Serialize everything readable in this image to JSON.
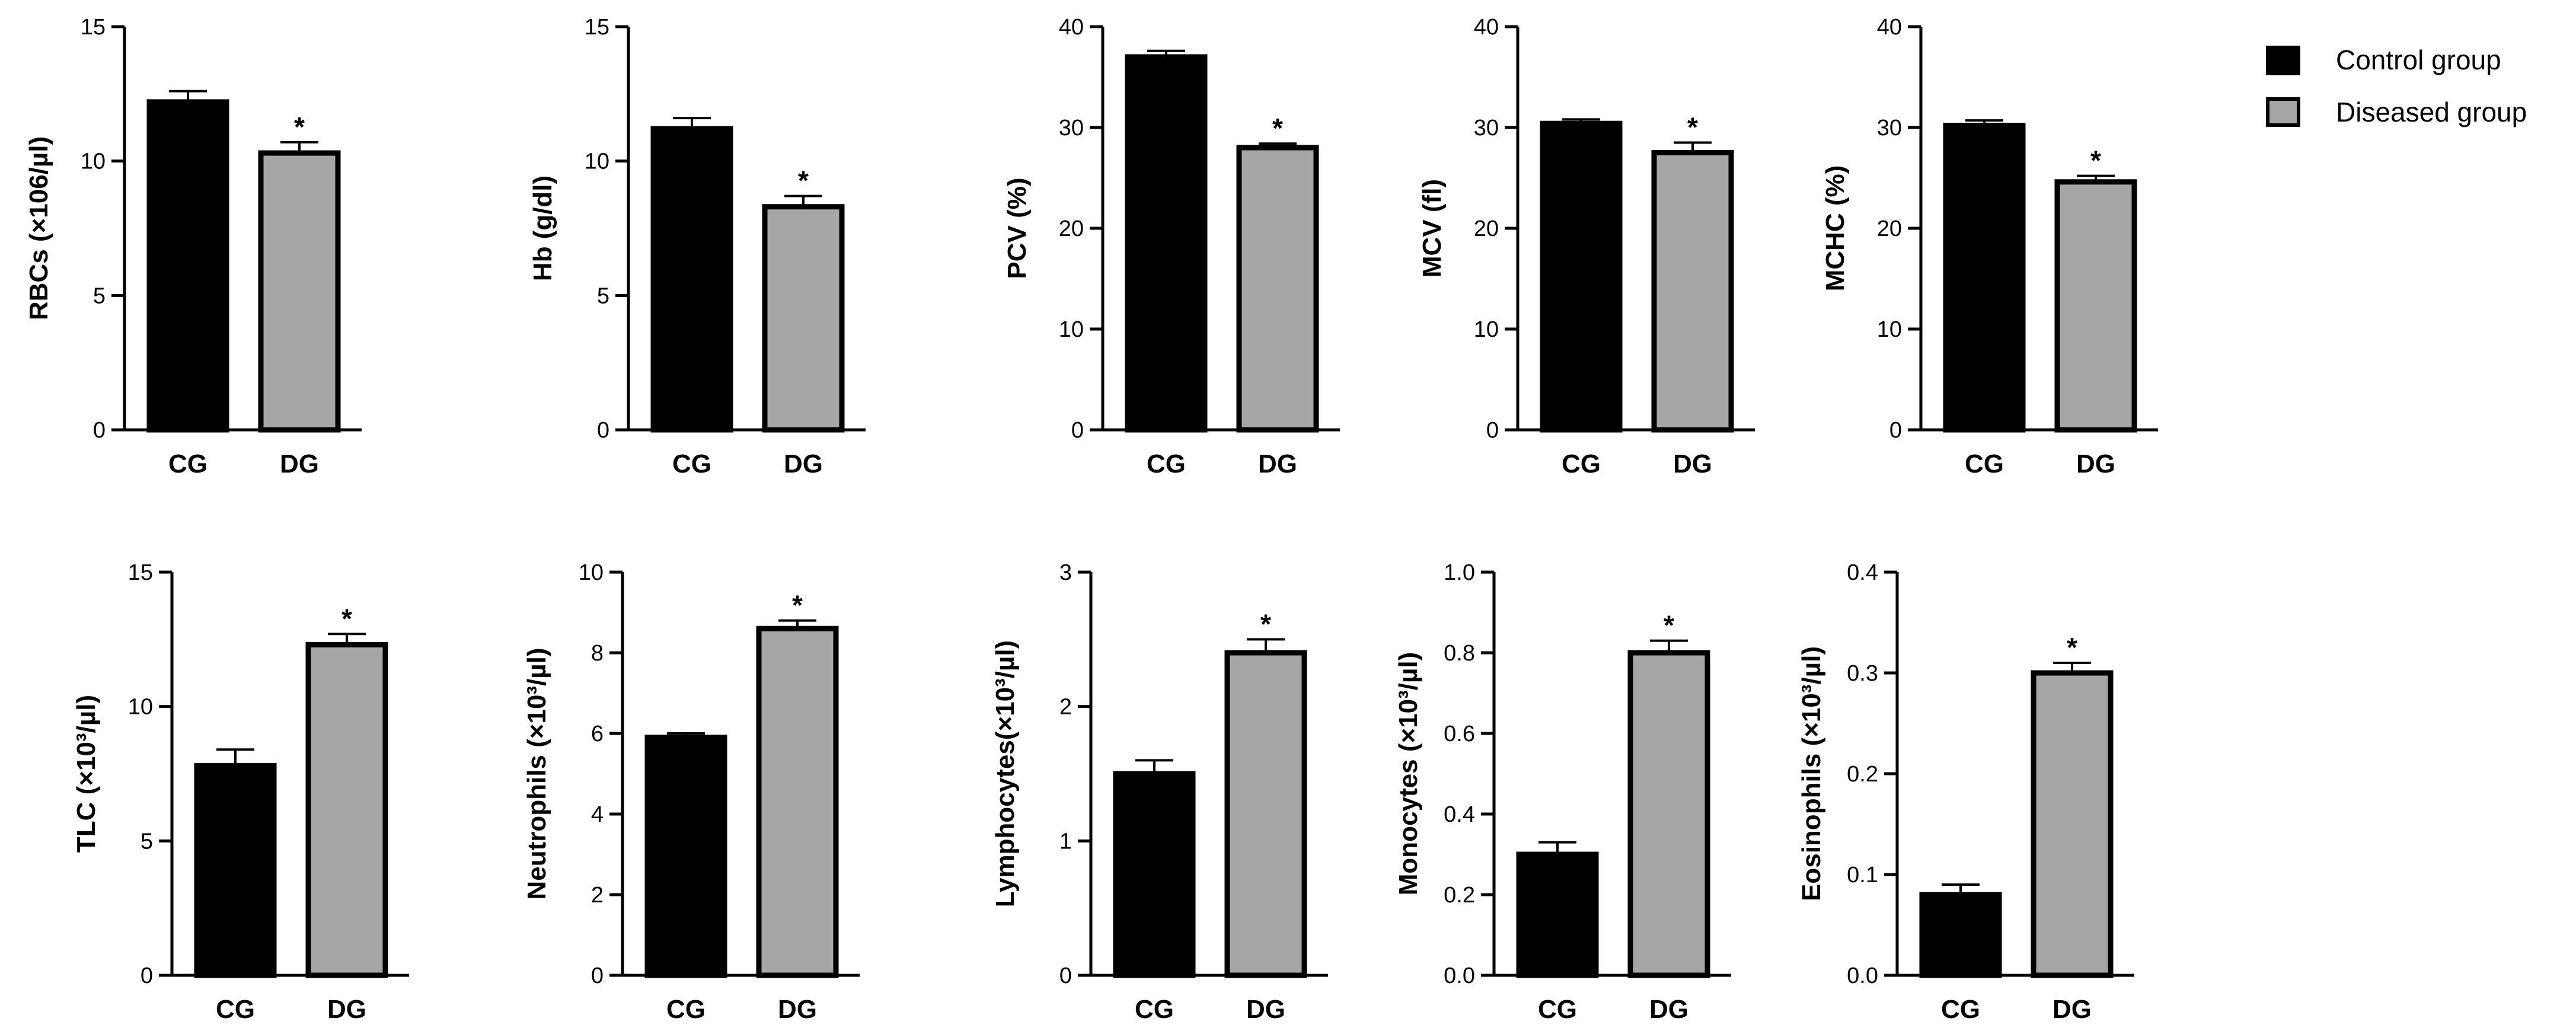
{
  "legend": [
    {
      "label": "Control group",
      "color": "#000000"
    },
    {
      "label": "Diseased group",
      "color": "#a6a6a8"
    }
  ],
  "chart_data": [
    {
      "type": "bar",
      "ylabel": "RBCs (×106/µl)",
      "categories": [
        "CG",
        "DG"
      ],
      "values": [
        12.2,
        10.3
      ],
      "errors": [
        0.4,
        0.4
      ],
      "sig": [
        "",
        "*"
      ],
      "ylim": [
        0,
        15
      ],
      "ticks": [
        0,
        5,
        10,
        15
      ],
      "tick_labels": [
        "0",
        "5",
        "10",
        "15"
      ]
    },
    {
      "type": "bar",
      "ylabel": "Hb (g/dl)",
      "categories": [
        "CG",
        "DG"
      ],
      "values": [
        11.2,
        8.3
      ],
      "errors": [
        0.4,
        0.4
      ],
      "sig": [
        "",
        "*"
      ],
      "ylim": [
        0,
        15
      ],
      "ticks": [
        0,
        5,
        10,
        15
      ],
      "tick_labels": [
        "0",
        "5",
        "10",
        "15"
      ]
    },
    {
      "type": "bar",
      "ylabel": "PCV (%)",
      "categories": [
        "CG",
        "DG"
      ],
      "values": [
        37,
        28
      ],
      "errors": [
        0.6,
        0.4
      ],
      "sig": [
        "",
        "*"
      ],
      "ylim": [
        0,
        40
      ],
      "ticks": [
        0,
        10,
        20,
        30,
        40
      ],
      "tick_labels": [
        "0",
        "10",
        "20",
        "30",
        "40"
      ]
    },
    {
      "type": "bar",
      "ylabel": "MCV (fl)",
      "categories": [
        "CG",
        "DG"
      ],
      "values": [
        30.4,
        27.5
      ],
      "errors": [
        0.4,
        1.0
      ],
      "sig": [
        "",
        "*"
      ],
      "ylim": [
        0,
        40
      ],
      "ticks": [
        0,
        10,
        20,
        30,
        40
      ],
      "tick_labels": [
        "0",
        "10",
        "20",
        "30",
        "40"
      ]
    },
    {
      "type": "bar",
      "ylabel": "MCHC (%)",
      "categories": [
        "CG",
        "DG"
      ],
      "values": [
        30.2,
        24.6
      ],
      "errors": [
        0.5,
        0.6
      ],
      "sig": [
        "",
        "*"
      ],
      "ylim": [
        0,
        40
      ],
      "ticks": [
        0,
        10,
        20,
        30,
        40
      ],
      "tick_labels": [
        "0",
        "10",
        "20",
        "30",
        "40"
      ]
    },
    {
      "type": "bar",
      "ylabel": "TLC (×10³/µl)",
      "categories": [
        "CG",
        "DG"
      ],
      "values": [
        7.8,
        12.3
      ],
      "errors": [
        0.6,
        0.4
      ],
      "sig": [
        "",
        "*"
      ],
      "ylim": [
        0,
        15
      ],
      "ticks": [
        0,
        5,
        10,
        15
      ],
      "tick_labels": [
        "0",
        "5",
        "10",
        "15"
      ]
    },
    {
      "type": "bar",
      "ylabel": "Neutrophils (×10³/µl)",
      "categories": [
        "CG",
        "DG"
      ],
      "values": [
        5.9,
        8.6
      ],
      "errors": [
        0.1,
        0.2
      ],
      "sig": [
        "",
        "*"
      ],
      "ylim": [
        0,
        10
      ],
      "ticks": [
        0,
        2,
        4,
        6,
        8,
        10
      ],
      "tick_labels": [
        "0",
        "2",
        "4",
        "6",
        "8",
        "10"
      ]
    },
    {
      "type": "bar",
      "ylabel": "Lymphocytes(×10³/µl)",
      "categories": [
        "CG",
        "DG"
      ],
      "values": [
        1.5,
        2.4
      ],
      "errors": [
        0.1,
        0.1
      ],
      "sig": [
        "",
        "*"
      ],
      "ylim": [
        0,
        3
      ],
      "ticks": [
        0,
        1,
        2,
        3
      ],
      "tick_labels": [
        "0",
        "1",
        "2",
        "3"
      ]
    },
    {
      "type": "bar",
      "ylabel": "Monocytes (×10³/µl)",
      "categories": [
        "CG",
        "DG"
      ],
      "values": [
        0.3,
        0.8
      ],
      "errors": [
        0.03,
        0.03
      ],
      "sig": [
        "",
        "*"
      ],
      "ylim": [
        0,
        1.0
      ],
      "ticks": [
        0,
        0.2,
        0.4,
        0.6,
        0.8,
        1.0
      ],
      "tick_labels": [
        "0.0",
        "0.2",
        "0.4",
        "0.6",
        "0.8",
        "1.0"
      ]
    },
    {
      "type": "bar",
      "ylabel": "Eosinophils (×10³/µl)",
      "categories": [
        "CG",
        "DG"
      ],
      "values": [
        0.08,
        0.3
      ],
      "errors": [
        0.01,
        0.01
      ],
      "sig": [
        "",
        "*"
      ],
      "ylim": [
        0,
        0.4
      ],
      "ticks": [
        0,
        0.1,
        0.2,
        0.3,
        0.4
      ],
      "tick_labels": [
        "0.0",
        "0.1",
        "0.2",
        "0.3",
        "0.4"
      ]
    }
  ]
}
